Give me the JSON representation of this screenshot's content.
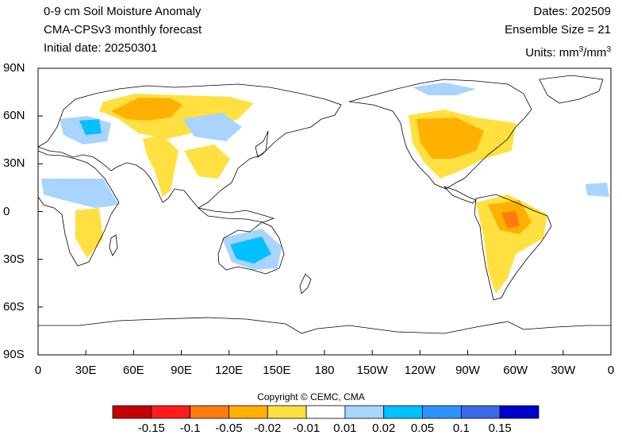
{
  "header": {
    "title_line1": "0-9 cm Soil Moisture Anomaly",
    "title_line2": "CMA-CPSv3 monthly forecast",
    "title_line3": "Initial date: 20250301",
    "dates": "Dates: 202509",
    "ensemble": "Ensemble Size = 21",
    "units_prefix": "Units: mm",
    "units_sup1": "3",
    "units_mid": "/mm",
    "units_sup2": "3"
  },
  "axes": {
    "lat_labels": [
      "90N",
      "60N",
      "30N",
      "0",
      "30S",
      "60S",
      "90S"
    ],
    "lon_labels": [
      "0",
      "30E",
      "60E",
      "90E",
      "120E",
      "150E",
      "180",
      "150W",
      "120W",
      "90W",
      "60W",
      "30W",
      "0"
    ]
  },
  "copyright": "Copyright © CEMC, CMA",
  "colorbar": {
    "colors": [
      "#c40000",
      "#ff1c1c",
      "#ff7a10",
      "#ffb000",
      "#ffe040",
      "#ffffff",
      "#a8d4ff",
      "#00c0ff",
      "#2c94ff",
      "#3a68e8",
      "#0000c8"
    ],
    "labels": [
      "-0.15",
      "-0.1",
      "-0.05",
      "-0.02",
      "-0.01",
      "0.01",
      "0.02",
      "0.05",
      "0.1",
      "0.15"
    ]
  },
  "map": {
    "projection": "equirectangular",
    "lon_range": [
      0,
      360
    ],
    "lat_range": [
      -90,
      90
    ],
    "coastline_color": "#000000"
  }
}
